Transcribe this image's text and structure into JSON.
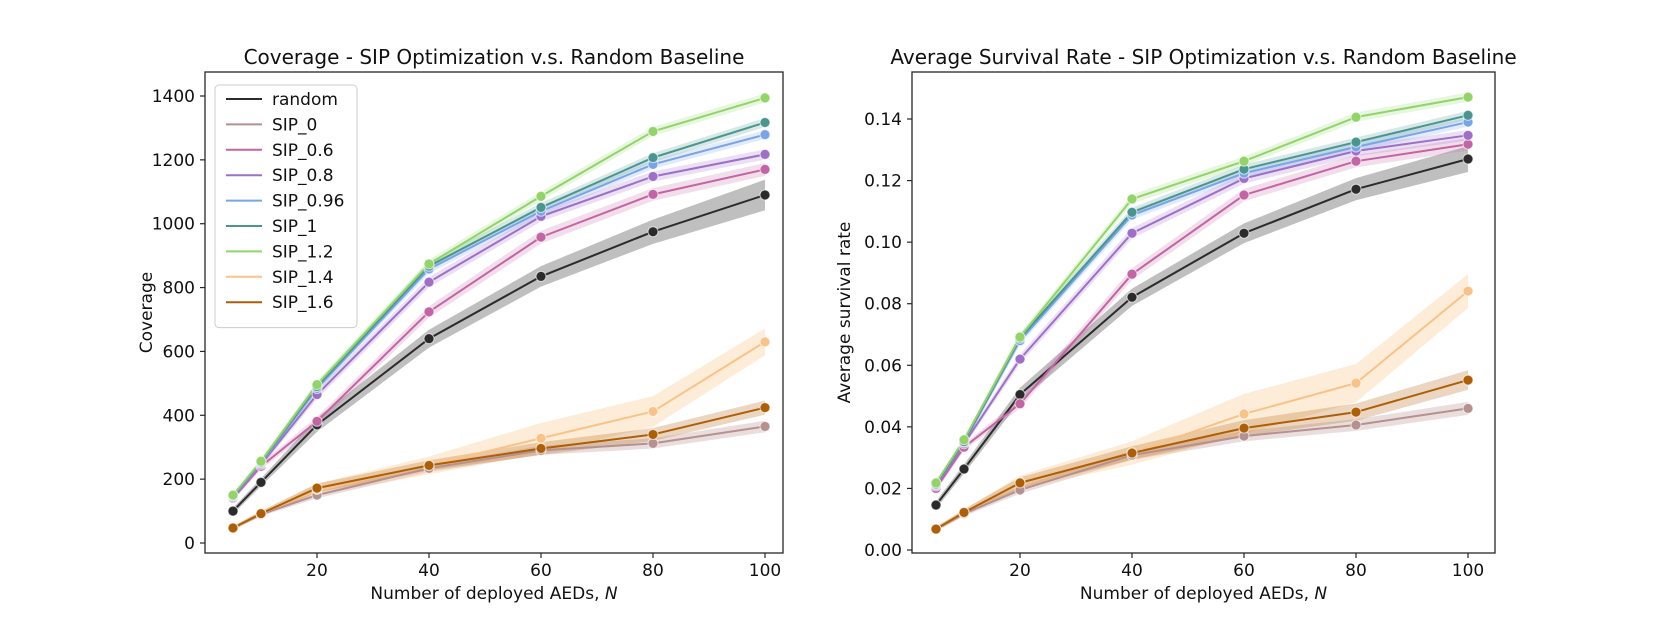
{
  "figure": {
    "background": "#ffffff"
  },
  "chart_data": [
    {
      "type": "line",
      "title": "Coverage - SIP Optimization v.s. Random Baseline",
      "xlabel": "Number of deployed AEDs, ",
      "xlabel_var": "N",
      "ylabel": "Coverage",
      "x": [
        5,
        10,
        20,
        40,
        60,
        80,
        100
      ],
      "xlim": [
        0,
        103
      ],
      "ylim": [
        -31,
        1488
      ],
      "x_tick_values": [
        20,
        40,
        60,
        80,
        100
      ],
      "x_tick_labels": [
        "20",
        "40",
        "60",
        "80",
        "100"
      ],
      "y_tick_values": [
        0,
        200,
        400,
        600,
        800,
        1000,
        1200,
        1400
      ],
      "y_tick_labels": [
        "0",
        "200",
        "400",
        "600",
        "800",
        "1000",
        "1200",
        "1400"
      ],
      "grid": false,
      "legend_position": "upper left",
      "series": [
        {
          "name": "random",
          "color": "#2b2b2b",
          "band_alpha": 0.3,
          "values": [
            100,
            190,
            370,
            640,
            835,
            975,
            1090
          ],
          "band": [
            10,
            12,
            22,
            28,
            32,
            38,
            48
          ]
        },
        {
          "name": "SIP_0",
          "color": "#b5918f",
          "band_alpha": 0.3,
          "values": [
            47,
            90,
            150,
            234,
            290,
            312,
            365
          ],
          "band": [
            5,
            6,
            10,
            12,
            14,
            16,
            18
          ]
        },
        {
          "name": "SIP_0.6",
          "color": "#c364a4",
          "band_alpha": 0.22,
          "values": [
            140,
            240,
            381,
            724,
            958,
            1092,
            1170
          ],
          "band": [
            8,
            10,
            14,
            18,
            20,
            20,
            20
          ]
        },
        {
          "name": "SIP_0.8",
          "color": "#9e6fc9",
          "band_alpha": 0.22,
          "values": [
            142,
            246,
            465,
            817,
            1023,
            1148,
            1217
          ],
          "band": [
            8,
            10,
            14,
            16,
            16,
            16,
            16
          ]
        },
        {
          "name": "SIP_0.96",
          "color": "#79a5e8",
          "band_alpha": 0.22,
          "values": [
            146,
            250,
            484,
            858,
            1039,
            1186,
            1279
          ],
          "band": [
            6,
            8,
            12,
            14,
            14,
            14,
            14
          ]
        },
        {
          "name": "SIP_1",
          "color": "#4a968f",
          "band_alpha": 0.22,
          "values": [
            148,
            253,
            490,
            867,
            1051,
            1207,
            1317
          ],
          "band": [
            6,
            8,
            12,
            14,
            14,
            14,
            14
          ]
        },
        {
          "name": "SIP_1.2",
          "color": "#92d467",
          "band_alpha": 0.22,
          "values": [
            150,
            256,
            496,
            874,
            1086,
            1289,
            1394
          ],
          "band": [
            6,
            8,
            12,
            14,
            14,
            14,
            14
          ]
        },
        {
          "name": "SIP_1.4",
          "color": "#f9c387",
          "band_alpha": 0.32,
          "values": [
            47,
            92,
            168,
            243,
            328,
            412,
            630
          ],
          "band": [
            6,
            8,
            18,
            28,
            48,
            48,
            42
          ]
        },
        {
          "name": "SIP_1.6",
          "color": "#ae5f06",
          "band_alpha": 0.25,
          "values": [
            47,
            92,
            172,
            243,
            296,
            340,
            424
          ],
          "band": [
            6,
            8,
            14,
            16,
            20,
            20,
            22
          ]
        }
      ]
    },
    {
      "type": "line",
      "title": "Average Survival Rate - SIP Optimization v.s. Random Baseline",
      "xlabel": "Number of deployed AEDs, ",
      "xlabel_var": "N",
      "ylabel": "Average survival rate",
      "x": [
        5,
        10,
        20,
        40,
        60,
        80,
        100
      ],
      "xlim": [
        0.7,
        104.8
      ],
      "ylim": [
        -0.001,
        0.1566
      ],
      "x_tick_values": [
        20,
        40,
        60,
        80,
        100
      ],
      "x_tick_labels": [
        "20",
        "40",
        "60",
        "80",
        "100"
      ],
      "y_tick_values": [
        0.0,
        0.02,
        0.04,
        0.06,
        0.08,
        0.1,
        0.12,
        0.14
      ],
      "y_tick_labels": [
        "0.00",
        "0.02",
        "0.04",
        "0.06",
        "0.08",
        "0.10",
        "0.12",
        "0.14"
      ],
      "grid": false,
      "legend_position": "none",
      "series": [
        {
          "name": "random",
          "color": "#2b2b2b",
          "band_alpha": 0.3,
          "values": [
            0.0146,
            0.0263,
            0.0505,
            0.0821,
            0.1029,
            0.1172,
            0.127
          ],
          "band": [
            0.0012,
            0.0015,
            0.0022,
            0.0028,
            0.0032,
            0.0036,
            0.0042
          ]
        },
        {
          "name": "SIP_0",
          "color": "#b5918f",
          "band_alpha": 0.3,
          "values": [
            0.0068,
            0.0118,
            0.0195,
            0.0308,
            0.037,
            0.0406,
            0.046
          ],
          "band": [
            0.0006,
            0.0008,
            0.0012,
            0.0015,
            0.0017,
            0.0019,
            0.0021
          ]
        },
        {
          "name": "SIP_0.6",
          "color": "#c364a4",
          "band_alpha": 0.22,
          "values": [
            0.02,
            0.0334,
            0.0475,
            0.0896,
            0.1153,
            0.1263,
            0.1318
          ],
          "band": [
            0.0009,
            0.0011,
            0.0015,
            0.0019,
            0.002,
            0.002,
            0.002
          ]
        },
        {
          "name": "SIP_0.8",
          "color": "#9e6fc9",
          "band_alpha": 0.22,
          "values": [
            0.0208,
            0.0345,
            0.062,
            0.1029,
            0.1207,
            0.1296,
            0.1347
          ],
          "band": [
            0.0009,
            0.0011,
            0.0015,
            0.0017,
            0.0017,
            0.0017,
            0.0017
          ]
        },
        {
          "name": "SIP_0.96",
          "color": "#79a5e8",
          "band_alpha": 0.22,
          "values": [
            0.0212,
            0.035,
            0.068,
            0.1088,
            0.1224,
            0.1309,
            0.139
          ],
          "band": [
            0.0007,
            0.0009,
            0.0013,
            0.0015,
            0.0015,
            0.0015,
            0.0015
          ]
        },
        {
          "name": "SIP_1",
          "color": "#4a968f",
          "band_alpha": 0.22,
          "values": [
            0.0214,
            0.0352,
            0.0688,
            0.1097,
            0.1237,
            0.1325,
            0.1412
          ],
          "band": [
            0.0007,
            0.0009,
            0.0013,
            0.0015,
            0.0015,
            0.0015,
            0.0015
          ]
        },
        {
          "name": "SIP_1.2",
          "color": "#92d467",
          "band_alpha": 0.22,
          "values": [
            0.0218,
            0.0358,
            0.0692,
            0.114,
            0.1263,
            0.1406,
            0.1471
          ],
          "band": [
            0.0007,
            0.0009,
            0.0013,
            0.0015,
            0.0015,
            0.0015,
            0.0015
          ]
        },
        {
          "name": "SIP_1.4",
          "color": "#f9c387",
          "band_alpha": 0.32,
          "values": [
            0.0068,
            0.0122,
            0.022,
            0.0315,
            0.0442,
            0.0542,
            0.0841
          ],
          "band": [
            0.0007,
            0.001,
            0.0022,
            0.0038,
            0.0065,
            0.0062,
            0.0055
          ]
        },
        {
          "name": "SIP_1.6",
          "color": "#ae5f06",
          "band_alpha": 0.25,
          "values": [
            0.0068,
            0.0122,
            0.0218,
            0.0315,
            0.0396,
            0.0448,
            0.0552
          ],
          "band": [
            0.0007,
            0.001,
            0.0018,
            0.0022,
            0.0026,
            0.0028,
            0.0032
          ]
        }
      ]
    }
  ]
}
